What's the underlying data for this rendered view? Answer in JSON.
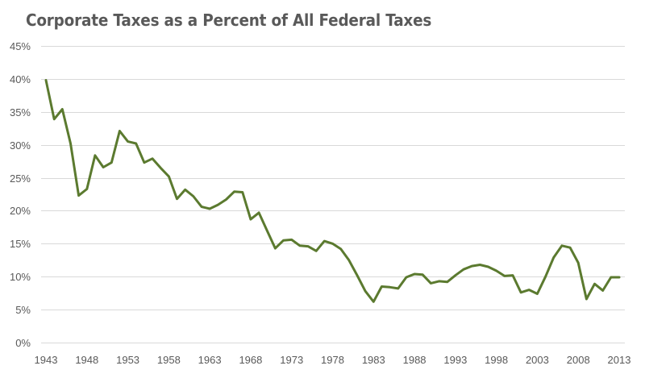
{
  "chart_data": {
    "type": "line",
    "title": "Corporate Taxes as a Percent of All Federal Taxes",
    "xlabel": "",
    "ylabel": "",
    "ylim": [
      0,
      45
    ],
    "yticks": [
      0,
      5,
      10,
      15,
      20,
      25,
      30,
      35,
      40,
      45
    ],
    "ytick_labels": [
      "0%",
      "5%",
      "10%",
      "15%",
      "20%",
      "25%",
      "30%",
      "35%",
      "40%",
      "45%"
    ],
    "xlim": [
      1943,
      2013
    ],
    "xticks": [
      1943,
      1948,
      1953,
      1958,
      1963,
      1968,
      1973,
      1978,
      1983,
      1988,
      1993,
      1998,
      2003,
      2008,
      2013
    ],
    "xtick_labels": [
      "1943",
      "1948",
      "1953",
      "1958",
      "1963",
      "1968",
      "1973",
      "1978",
      "1983",
      "1988",
      "1993",
      "1998",
      "2003",
      "2008",
      "2013"
    ],
    "grid": "horizontal",
    "legend": "none",
    "series": [
      {
        "name": "Corporate Taxes as a Percent of All Federal Taxes",
        "color": "#5b7a2f",
        "x": [
          1943,
          1944,
          1945,
          1946,
          1947,
          1948,
          1949,
          1950,
          1951,
          1952,
          1953,
          1954,
          1955,
          1956,
          1957,
          1958,
          1959,
          1960,
          1961,
          1962,
          1963,
          1964,
          1965,
          1966,
          1967,
          1968,
          1969,
          1970,
          1971,
          1972,
          1973,
          1974,
          1975,
          1976,
          1977,
          1978,
          1979,
          1980,
          1981,
          1982,
          1983,
          1984,
          1985,
          1986,
          1987,
          1988,
          1989,
          1990,
          1991,
          1992,
          1993,
          1994,
          1995,
          1996,
          1997,
          1998,
          1999,
          2000,
          2001,
          2002,
          2003,
          2004,
          2005,
          2006,
          2007,
          2008,
          2009,
          2010,
          2011,
          2012,
          2013
        ],
        "values": [
          39.8,
          33.9,
          35.4,
          30.2,
          22.3,
          23.3,
          28.4,
          26.6,
          27.3,
          32.1,
          30.5,
          30.2,
          27.3,
          27.9,
          26.5,
          25.2,
          21.8,
          23.2,
          22.2,
          20.6,
          20.3,
          20.9,
          21.7,
          22.9,
          22.8,
          18.7,
          19.7,
          17.0,
          14.3,
          15.5,
          15.6,
          14.7,
          14.6,
          13.9,
          15.4,
          15.0,
          14.2,
          12.5,
          10.2,
          7.8,
          6.2,
          8.5,
          8.4,
          8.2,
          9.9,
          10.4,
          10.3,
          9.0,
          9.3,
          9.2,
          10.2,
          11.1,
          11.6,
          11.8,
          11.5,
          10.9,
          10.1,
          10.2,
          7.6,
          8.0,
          7.4,
          10.0,
          12.9,
          14.7,
          14.4,
          12.1,
          6.6,
          8.9,
          7.9,
          9.9,
          9.9
        ]
      }
    ]
  }
}
